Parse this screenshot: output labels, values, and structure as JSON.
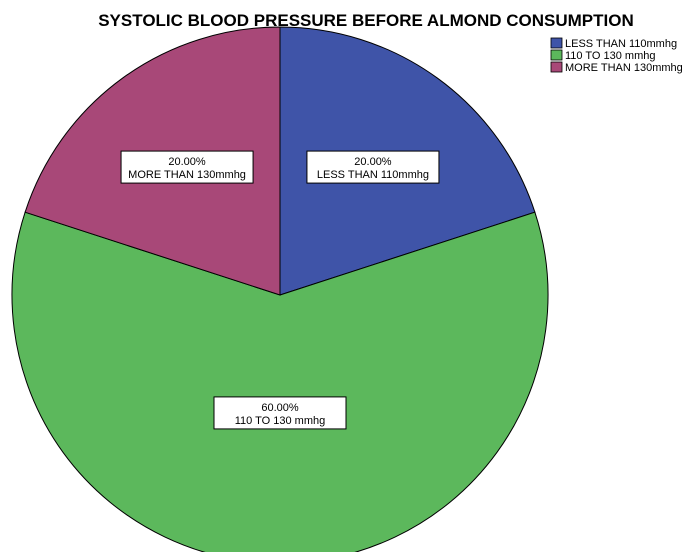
{
  "chart_data": {
    "type": "pie",
    "title": "SYSTOLIC BLOOD PRESSURE BEFORE ALMOND CONSUMPTION",
    "slices": [
      {
        "name": "LESS THAN 110mmhg",
        "value": 20.0,
        "label_pct": "20.00%",
        "label_name": "LESS THAN 110mmhg",
        "color": "#3f54a8"
      },
      {
        "name": "110 TO 130 mmhg",
        "value": 60.0,
        "label_pct": "60.00%",
        "label_name": "110 TO 130 mmhg",
        "color": "#5cb85c"
      },
      {
        "name": "MORE THAN 130mmhg",
        "value": 20.0,
        "label_pct": "20.00%",
        "label_name": "MORE THAN 130mmhg",
        "color": "#a84878"
      }
    ],
    "legend_position": "top-right",
    "start": "top",
    "direction": "clockwise"
  }
}
